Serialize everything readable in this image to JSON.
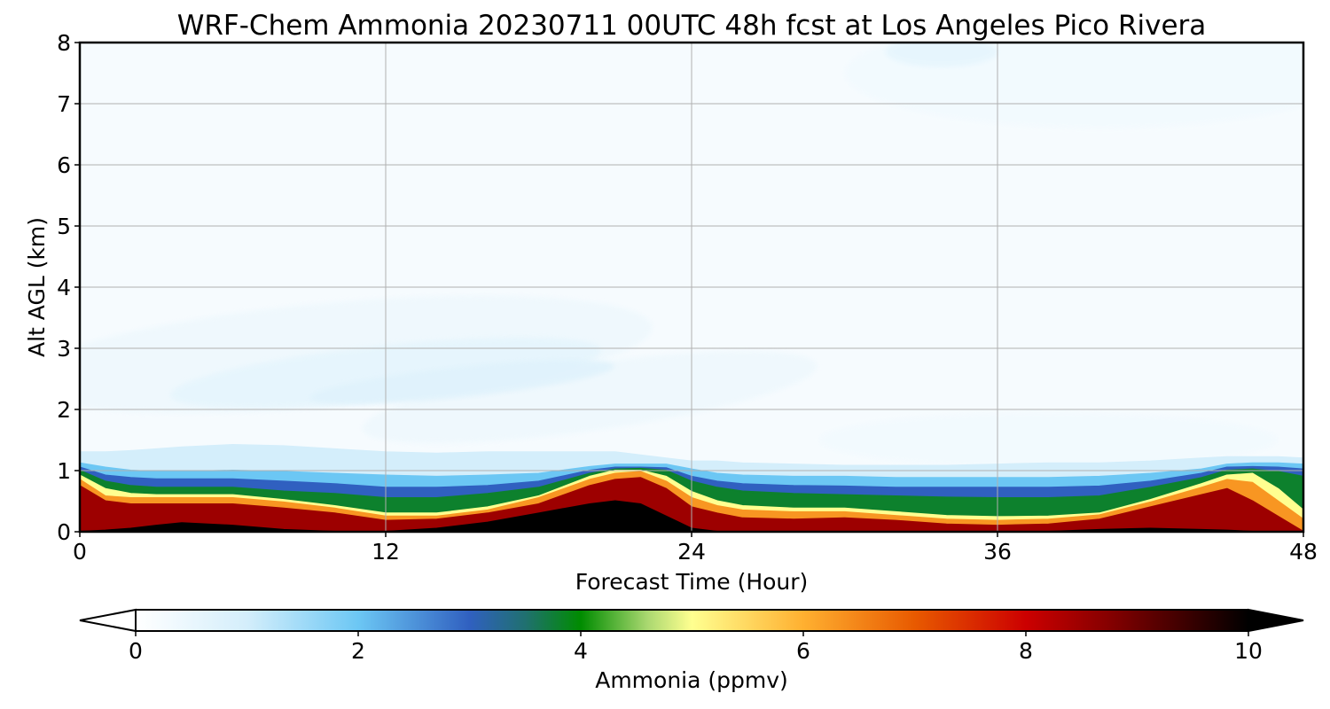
{
  "chart_data": {
    "type": "heatmap",
    "title": "WRF-Chem Ammonia  20230711 00UTC 48h fcst at Los Angeles Pico Rivera",
    "xlabel": "Forecast Time (Hour)",
    "ylabel": "Alt AGL (km)",
    "xlim": [
      0,
      48
    ],
    "ylim": [
      0,
      8
    ],
    "xticks": [
      0,
      12,
      24,
      36,
      48
    ],
    "yticks": [
      0,
      1,
      2,
      3,
      4,
      5,
      6,
      7,
      8
    ],
    "grid": true,
    "colorbar": {
      "label": "Ammonia  (ppmv)",
      "range": [
        0,
        10
      ],
      "ticks": [
        0,
        2,
        4,
        6,
        8,
        10
      ],
      "extend": "both",
      "orientation": "horizontal",
      "placement": "bottom"
    },
    "x": [
      0,
      1,
      2,
      3,
      4,
      6,
      8,
      10,
      12,
      14,
      16,
      18,
      20,
      21,
      22,
      23,
      24,
      25,
      26,
      28,
      30,
      32,
      34,
      36,
      38,
      40,
      42,
      44,
      45,
      46,
      47,
      48
    ],
    "layers": [
      {
        "name": "black",
        "value": 10,
        "top_km": [
          0,
          0.02,
          0.05,
          0.1,
          0.14,
          0.1,
          0.03,
          0,
          0,
          0.05,
          0.15,
          0.3,
          0.45,
          0.5,
          0.45,
          0.25,
          0.05,
          0,
          0,
          0,
          0,
          0,
          0,
          0,
          0,
          0.03,
          0.05,
          0.03,
          0.02,
          0,
          0,
          0
        ]
      },
      {
        "name": "dark-red",
        "value": 8.5,
        "top_km": [
          0.75,
          0.5,
          0.45,
          0.45,
          0.45,
          0.45,
          0.38,
          0.3,
          0.18,
          0.2,
          0.3,
          0.45,
          0.75,
          0.85,
          0.88,
          0.7,
          0.4,
          0.3,
          0.22,
          0.2,
          0.22,
          0.18,
          0.12,
          0.1,
          0.12,
          0.2,
          0.4,
          0.6,
          0.7,
          0.5,
          0.25,
          0
        ]
      },
      {
        "name": "orange",
        "value": 6.3,
        "top_km": [
          0.85,
          0.58,
          0.55,
          0.55,
          0.55,
          0.55,
          0.48,
          0.38,
          0.25,
          0.25,
          0.35,
          0.55,
          0.85,
          0.95,
          0.98,
          0.82,
          0.55,
          0.42,
          0.35,
          0.32,
          0.32,
          0.26,
          0.2,
          0.18,
          0.2,
          0.27,
          0.48,
          0.72,
          0.85,
          0.8,
          0.5,
          0.2
        ]
      },
      {
        "name": "yellow",
        "value": 5.0,
        "top_km": [
          0.92,
          0.7,
          0.62,
          0.6,
          0.6,
          0.6,
          0.52,
          0.42,
          0.3,
          0.3,
          0.4,
          0.58,
          0.9,
          1.0,
          1.0,
          0.9,
          0.65,
          0.5,
          0.42,
          0.38,
          0.38,
          0.32,
          0.26,
          0.24,
          0.25,
          0.3,
          0.52,
          0.78,
          0.92,
          0.95,
          0.7,
          0.35
        ]
      },
      {
        "name": "green",
        "value": 3.8,
        "top_km": [
          1.0,
          0.82,
          0.75,
          0.72,
          0.72,
          0.72,
          0.66,
          0.62,
          0.55,
          0.55,
          0.62,
          0.72,
          0.95,
          1.02,
          1.03,
          1.0,
          0.82,
          0.72,
          0.66,
          0.62,
          0.6,
          0.58,
          0.56,
          0.55,
          0.55,
          0.58,
          0.72,
          0.88,
          1.0,
          1.02,
          0.98,
          0.9
        ]
      },
      {
        "name": "teal",
        "value": 3.0,
        "top_km": [
          1.05,
          0.92,
          0.88,
          0.86,
          0.86,
          0.86,
          0.82,
          0.78,
          0.72,
          0.72,
          0.75,
          0.82,
          1.0,
          1.05,
          1.05,
          1.04,
          0.9,
          0.82,
          0.78,
          0.75,
          0.74,
          0.72,
          0.72,
          0.72,
          0.72,
          0.74,
          0.82,
          0.95,
          1.05,
          1.06,
          1.05,
          1.02
        ]
      },
      {
        "name": "blue",
        "value": 2.0,
        "top_km": [
          1.12,
          1.05,
          1.0,
          0.98,
          0.98,
          1.0,
          0.98,
          0.95,
          0.92,
          0.9,
          0.92,
          0.95,
          1.06,
          1.1,
          1.1,
          1.1,
          1.02,
          0.95,
          0.92,
          0.9,
          0.9,
          0.88,
          0.88,
          0.88,
          0.88,
          0.9,
          0.95,
          1.02,
          1.1,
          1.12,
          1.12,
          1.1
        ]
      },
      {
        "name": "light-blue",
        "value": 1.0,
        "top_km": [
          1.3,
          1.3,
          1.32,
          1.35,
          1.38,
          1.42,
          1.4,
          1.35,
          1.3,
          1.28,
          1.3,
          1.3,
          1.3,
          1.3,
          1.25,
          1.2,
          1.15,
          1.15,
          1.12,
          1.1,
          1.08,
          1.08,
          1.08,
          1.1,
          1.12,
          1.12,
          1.15,
          1.2,
          1.22,
          1.22,
          1.22,
          1.2
        ]
      }
    ],
    "blobs": [
      {
        "name": "plume-outer",
        "value": 0.4,
        "cx": 10,
        "cy": 2.9,
        "rx": 12.5,
        "ry": 0.85,
        "rot": -5
      },
      {
        "name": "plume-outer2",
        "value": 0.4,
        "cx": 20,
        "cy": 2.2,
        "rx": 9,
        "ry": 0.55,
        "rot": -8
      },
      {
        "name": "plume-mid",
        "value": 0.6,
        "cx": 12,
        "cy": 2.6,
        "rx": 8.5,
        "ry": 0.45,
        "rot": -6
      },
      {
        "name": "plume-core",
        "value": 0.75,
        "cx": 15,
        "cy": 2.45,
        "rx": 6,
        "ry": 0.25,
        "rot": -6
      },
      {
        "name": "lower-patch",
        "value": 0.3,
        "cx": 38,
        "cy": 1.5,
        "rx": 9,
        "ry": 0.45,
        "rot": 0
      },
      {
        "name": "top-patch",
        "value": 0.3,
        "cx": 40,
        "cy": 7.5,
        "rx": 10,
        "ry": 0.9,
        "rot": 0
      },
      {
        "name": "top-core",
        "value": 0.6,
        "cx": 33.8,
        "cy": 7.85,
        "rx": 2.2,
        "ry": 0.25,
        "rot": 0
      }
    ]
  }
}
